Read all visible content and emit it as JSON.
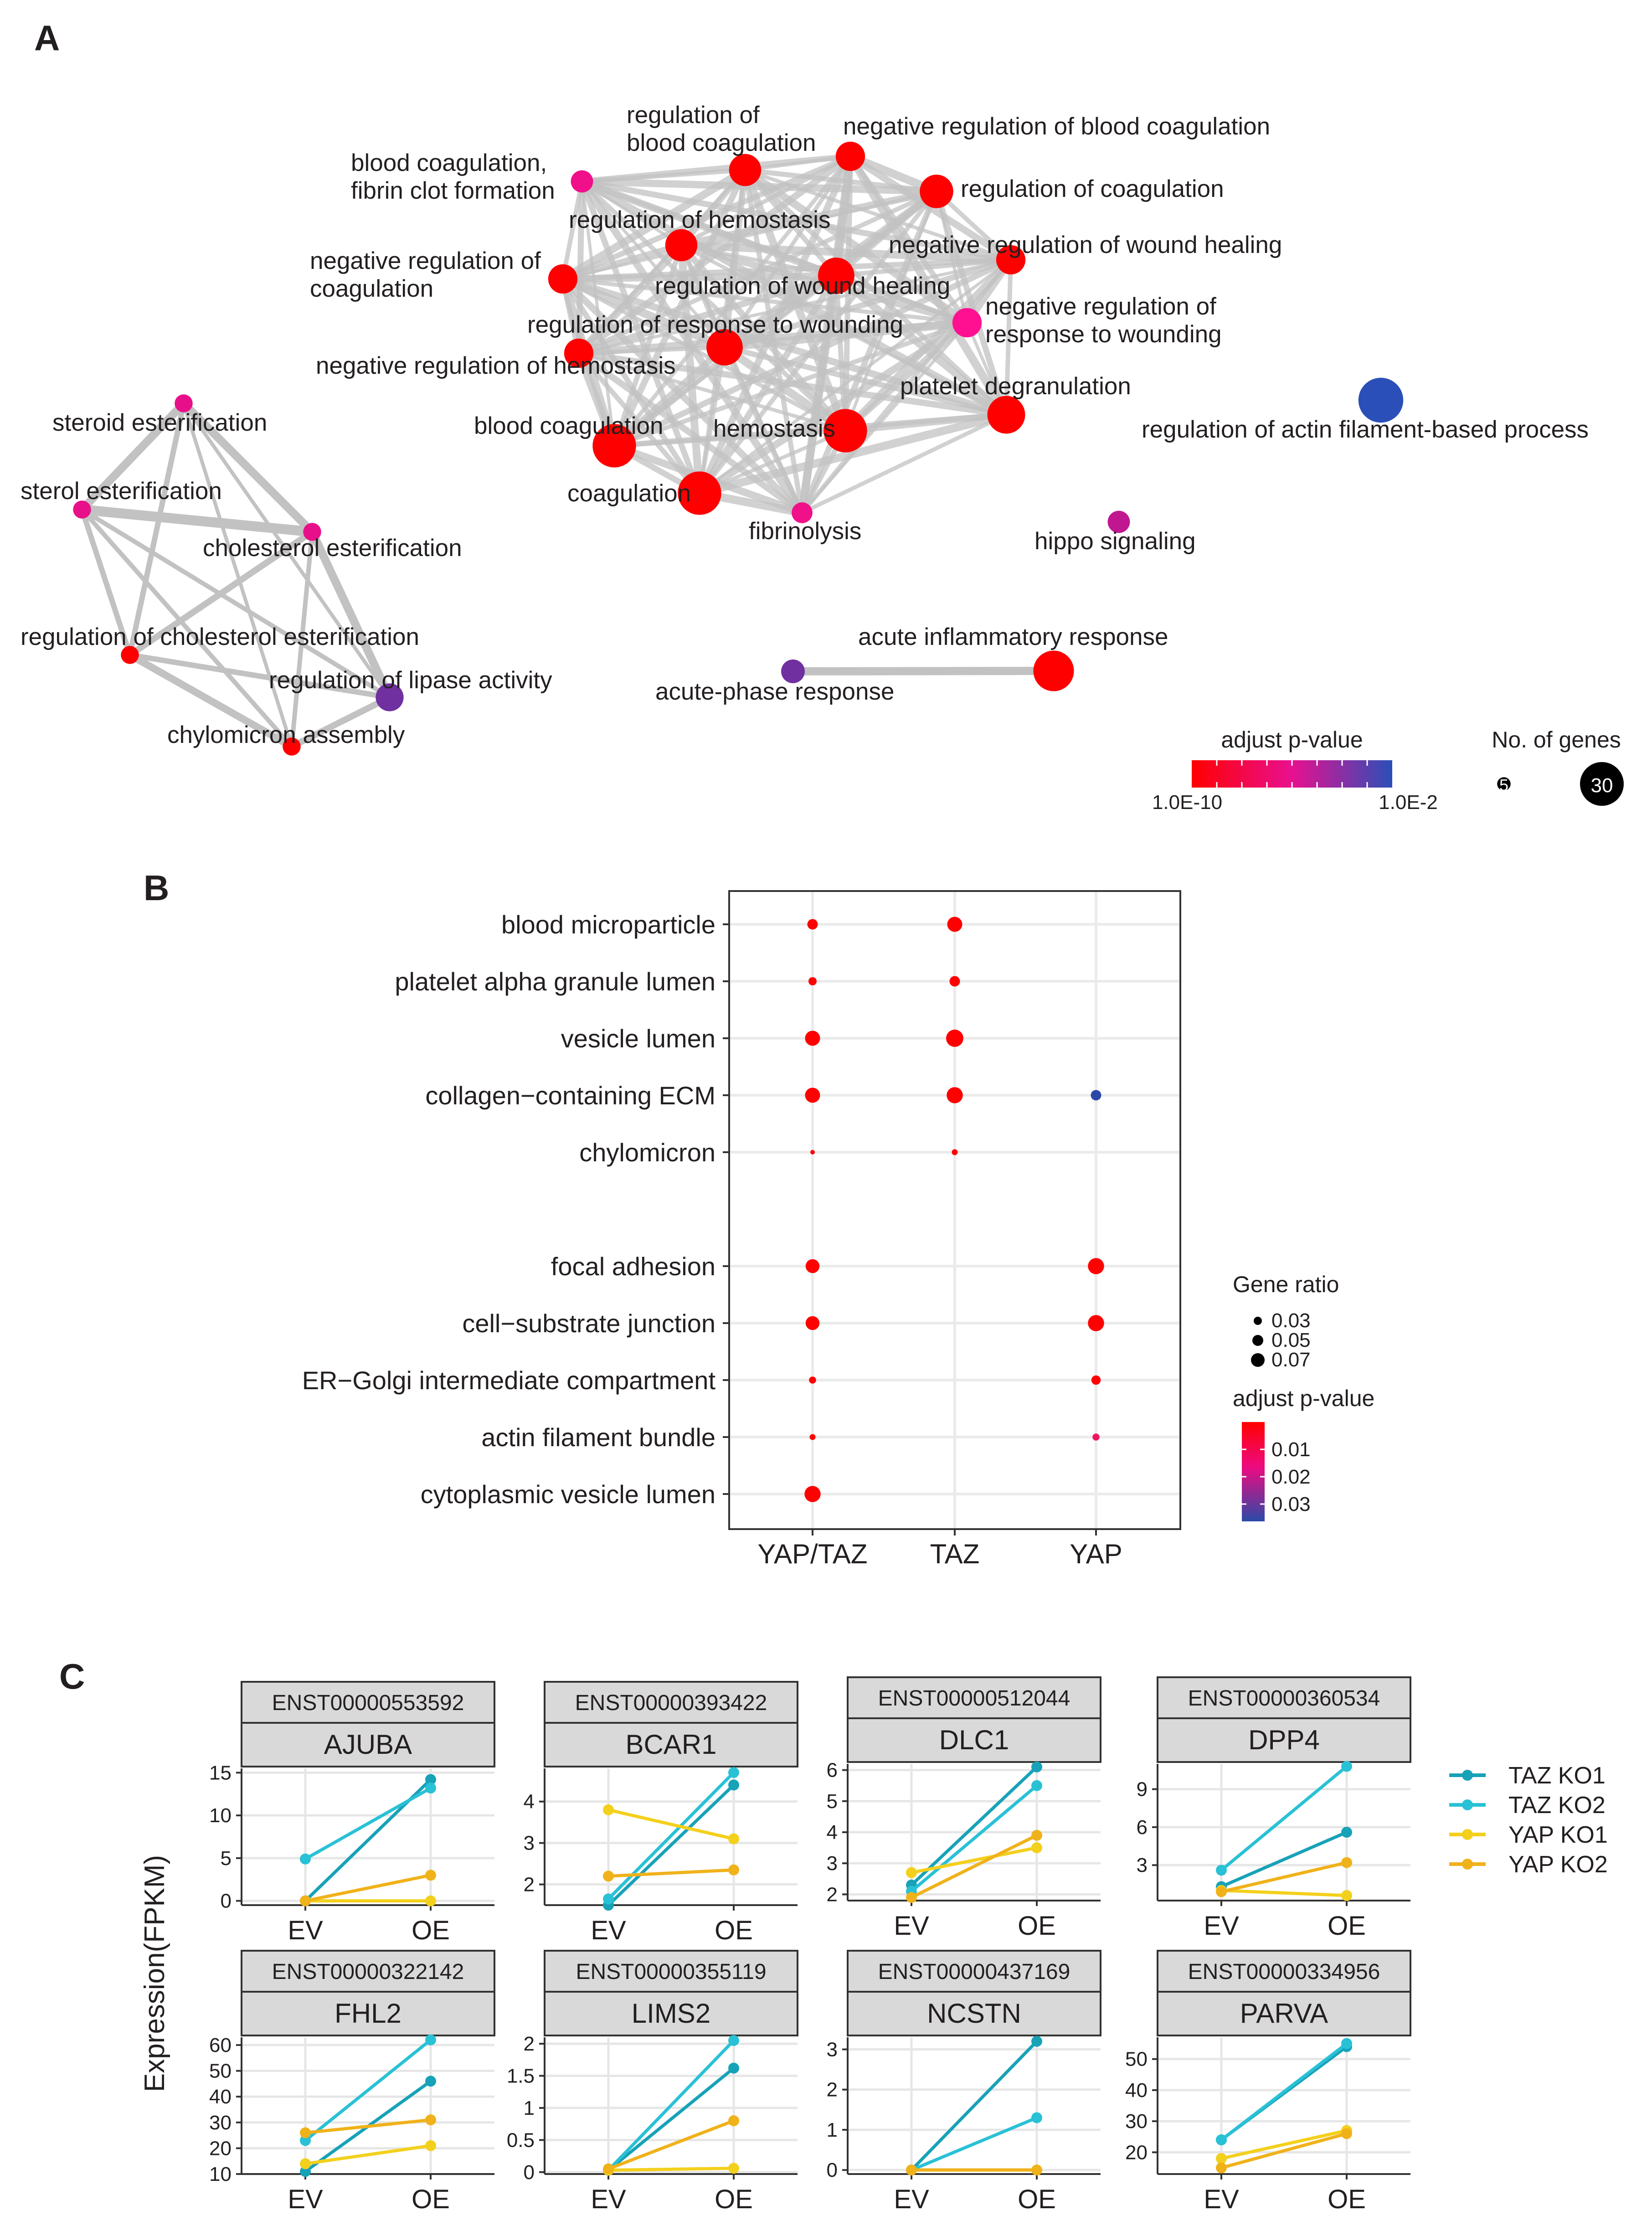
{
  "panels": {
    "a": "A",
    "b": "B",
    "c": "C"
  },
  "chart_data": [
    {
      "type": "network",
      "panel": "A",
      "legend": {
        "color_title": "adjust p-value",
        "color_min_label": "1.0E-10",
        "color_max_label": "1.0E-2",
        "color_low": "#ff0000",
        "color_mid": "#e8108f",
        "color_high": "#2a4fb8",
        "size_title": "No. of genes",
        "size_small_label": "5",
        "size_large_label": "30"
      },
      "nodes": [
        {
          "id": "bcff",
          "label": "blood coagulation,\nfibrin clot formation",
          "genes": 8,
          "color": "#f0108a"
        },
        {
          "id": "rbc",
          "label": "regulation of\nblood coagulation",
          "genes": 15,
          "color": "#ff0000"
        },
        {
          "id": "nrbc",
          "label": "negative regulation of blood coagulation",
          "genes": 13,
          "color": "#ff0000"
        },
        {
          "id": "rcoag",
          "label": "regulation of coagulation",
          "genes": 16,
          "color": "#ff0000"
        },
        {
          "id": "rhemo",
          "label": "regulation of hemostasis",
          "genes": 15,
          "color": "#ff0000"
        },
        {
          "id": "nrcoag",
          "label": "negative regulation of\ncoagulation",
          "genes": 13,
          "color": "#ff0000"
        },
        {
          "id": "nrwh",
          "label": "negative regulation of wound healing",
          "genes": 13,
          "color": "#ff0000"
        },
        {
          "id": "rwh",
          "label": "regulation of wound healing",
          "genes": 18,
          "color": "#ff0000"
        },
        {
          "id": "rrw",
          "label": "regulation of response to wounding",
          "genes": 18,
          "color": "#ff0000"
        },
        {
          "id": "nrrw",
          "label": "negative regulation of\nresponse to wounding",
          "genes": 13,
          "color": "#ff1090"
        },
        {
          "id": "nrhemo",
          "label": "negative regulation of hemostasis",
          "genes": 13,
          "color": "#ff0000"
        },
        {
          "id": "pdeg",
          "label": "platelet degranulation",
          "genes": 19,
          "color": "#ff0000"
        },
        {
          "id": "bcoag",
          "label": "blood coagulation",
          "genes": 23,
          "color": "#ff0000"
        },
        {
          "id": "hemostasis",
          "label": "hemostasis",
          "genes": 23,
          "color": "#ff0000"
        },
        {
          "id": "coag",
          "label": "coagulation",
          "genes": 23,
          "color": "#ff0000"
        },
        {
          "id": "fibrin",
          "label": "fibrinolysis",
          "genes": 7,
          "color": "#f0108a"
        },
        {
          "id": "ractin",
          "label": "regulation of actin filament-based process",
          "genes": 24,
          "color": "#2a4fb8"
        },
        {
          "id": "hippo",
          "label": "hippo signaling",
          "genes": 8,
          "color": "#c0168f"
        },
        {
          "id": "air",
          "label": "acute inflammatory response",
          "genes": 21,
          "color": "#ff0000"
        },
        {
          "id": "apr",
          "label": "acute-phase response",
          "genes": 9,
          "color": "#7030a0"
        },
        {
          "id": "steroid",
          "label": "steroid esterification",
          "genes": 5,
          "color": "#e8108a"
        },
        {
          "id": "sterol",
          "label": "sterol esterification",
          "genes": 5,
          "color": "#e8108a"
        },
        {
          "id": "chol",
          "label": "cholesterol esterification",
          "genes": 5,
          "color": "#e8108a"
        },
        {
          "id": "rce",
          "label": "regulation of cholesterol esterification",
          "genes": 5,
          "color": "#ff0000"
        },
        {
          "id": "rla",
          "label": "regulation of lipase activity",
          "genes": 12,
          "color": "#7030a0"
        },
        {
          "id": "chylo",
          "label": "chylomicron assembly",
          "genes": 5,
          "color": "#ff0000"
        }
      ]
    },
    {
      "type": "dot",
      "panel": "B",
      "x_categories": [
        "YAP/TAZ",
        "TAZ",
        "YAP"
      ],
      "y_categories": [
        "blood microparticle",
        "platelet alpha granule lumen",
        "vesicle lumen",
        "collagen−containing ECM",
        "chylomicron",
        "focal adhesion",
        "cell−substrate junction",
        "ER−Golgi intermediate compartment",
        "actin filament bundle",
        "cytoplasmic vesicle lumen"
      ],
      "points": [
        {
          "x": "YAP/TAZ",
          "y": "blood microparticle",
          "gene_ratio": 0.05,
          "p_adjust": 0.0001
        },
        {
          "x": "TAZ",
          "y": "blood microparticle",
          "gene_ratio": 0.07,
          "p_adjust": 0.0001
        },
        {
          "x": "YAP/TAZ",
          "y": "platelet alpha granule lumen",
          "gene_ratio": 0.04,
          "p_adjust": 0.0001
        },
        {
          "x": "TAZ",
          "y": "platelet alpha granule lumen",
          "gene_ratio": 0.05,
          "p_adjust": 0.0001
        },
        {
          "x": "YAP/TAZ",
          "y": "vesicle lumen",
          "gene_ratio": 0.07,
          "p_adjust": 0.0001
        },
        {
          "x": "TAZ",
          "y": "vesicle lumen",
          "gene_ratio": 0.08,
          "p_adjust": 0.0001
        },
        {
          "x": "YAP/TAZ",
          "y": "collagen−containing ECM",
          "gene_ratio": 0.07,
          "p_adjust": 0.0001
        },
        {
          "x": "TAZ",
          "y": "collagen−containing ECM",
          "gene_ratio": 0.075,
          "p_adjust": 0.0001
        },
        {
          "x": "YAP",
          "y": "collagen−containing ECM",
          "gene_ratio": 0.05,
          "p_adjust": 0.035
        },
        {
          "x": "YAP/TAZ",
          "y": "chylomicron",
          "gene_ratio": 0.02,
          "p_adjust": 0.001
        },
        {
          "x": "TAZ",
          "y": "chylomicron",
          "gene_ratio": 0.03,
          "p_adjust": 0.001
        },
        {
          "x": "YAP/TAZ",
          "y": "focal adhesion",
          "gene_ratio": 0.065,
          "p_adjust": 0.0001
        },
        {
          "x": "YAP",
          "y": "focal adhesion",
          "gene_ratio": 0.075,
          "p_adjust": 0.0001
        },
        {
          "x": "YAP/TAZ",
          "y": "cell−substrate junction",
          "gene_ratio": 0.065,
          "p_adjust": 0.0001
        },
        {
          "x": "YAP",
          "y": "cell−substrate junction",
          "gene_ratio": 0.075,
          "p_adjust": 0.0001
        },
        {
          "x": "YAP/TAZ",
          "y": "ER−Golgi intermediate compartment",
          "gene_ratio": 0.035,
          "p_adjust": 0.001
        },
        {
          "x": "YAP",
          "y": "ER−Golgi intermediate compartment",
          "gene_ratio": 0.045,
          "p_adjust": 0.001
        },
        {
          "x": "YAP/TAZ",
          "y": "actin filament bundle",
          "gene_ratio": 0.03,
          "p_adjust": 0.002
        },
        {
          "x": "YAP",
          "y": "actin filament bundle",
          "gene_ratio": 0.035,
          "p_adjust": 0.008
        },
        {
          "x": "YAP/TAZ",
          "y": "cytoplasmic vesicle lumen",
          "gene_ratio": 0.075,
          "p_adjust": 0.0001
        }
      ],
      "legend": {
        "size_title": "Gene ratio",
        "size_labels": [
          "0.03",
          "0.05",
          "0.07"
        ],
        "color_title": "adjust p-value",
        "color_labels": [
          "0.01",
          "0.02",
          "0.03"
        ]
      }
    },
    {
      "type": "line",
      "panel": "C",
      "ylabel": "Expression(FPKM)",
      "x_categories": [
        "EV",
        "OE"
      ],
      "series_names": [
        "TAZ KO1",
        "TAZ KO2",
        "YAP KO1",
        "YAP KO2"
      ],
      "series_colors": [
        "#17a2b8",
        "#29c1d6",
        "#f3d01c",
        "#f0b21a"
      ],
      "facets": [
        {
          "transcript": "ENST00000553592",
          "gene": "AJUBA",
          "ylim": [
            -0.5,
            15.5
          ],
          "yticks": [
            0,
            5,
            10,
            15
          ],
          "series": [
            [
              0,
              14.2
            ],
            [
              4.9,
              13.2
            ],
            [
              0,
              0
            ],
            [
              0,
              3
            ]
          ]
        },
        {
          "transcript": "ENST00000393422",
          "gene": "BCAR1",
          "ylim": [
            1.5,
            4.8
          ],
          "yticks": [
            2,
            3,
            4
          ],
          "series": [
            [
              1.5,
              4.4
            ],
            [
              1.65,
              4.7
            ],
            [
              3.8,
              3.1
            ],
            [
              2.2,
              2.35
            ]
          ]
        },
        {
          "transcript": "ENST00000512044",
          "gene": "DLC1",
          "ylim": [
            1.8,
            6.2
          ],
          "yticks": [
            2,
            3,
            4,
            5,
            6
          ],
          "series": [
            [
              2.3,
              6.1
            ],
            [
              2.1,
              5.5
            ],
            [
              2.7,
              3.5
            ],
            [
              1.9,
              3.9
            ]
          ]
        },
        {
          "transcript": "ENST00000360534",
          "gene": "DPP4",
          "ylim": [
            0.2,
            11
          ],
          "yticks": [
            3,
            6,
            9
          ],
          "series": [
            [
              1.3,
              5.6
            ],
            [
              2.6,
              10.8
            ],
            [
              1.0,
              0.6
            ],
            [
              0.9,
              3.2
            ]
          ]
        },
        {
          "transcript": "ENST00000322142",
          "gene": "FHL2",
          "ylim": [
            10,
            63
          ],
          "yticks": [
            10,
            20,
            30,
            40,
            50,
            60
          ],
          "series": [
            [
              11,
              46
            ],
            [
              23,
              62
            ],
            [
              14,
              21
            ],
            [
              26,
              31
            ]
          ]
        },
        {
          "transcript": "ENST00000355119",
          "gene": "LIMS2",
          "ylim": [
            -0.03,
            2.1
          ],
          "yticks": [
            0.0,
            0.5,
            1.0,
            1.5,
            2.0
          ],
          "series": [
            [
              0.03,
              1.62
            ],
            [
              0.03,
              2.05
            ],
            [
              0.03,
              0.06
            ],
            [
              0.05,
              0.8
            ]
          ]
        },
        {
          "transcript": "ENST00000437169",
          "gene": "NCSTN",
          "ylim": [
            -0.1,
            3.3
          ],
          "yticks": [
            0,
            1,
            2,
            3
          ],
          "series": [
            [
              0,
              3.2
            ],
            [
              0,
              1.3
            ],
            [
              0,
              0
            ],
            [
              0,
              0
            ]
          ]
        },
        {
          "transcript": "ENST00000334956",
          "gene": "PARVA",
          "ylim": [
            13,
            57
          ],
          "yticks": [
            20,
            30,
            40,
            50
          ],
          "series": [
            [
              24,
              54
            ],
            [
              24,
              55
            ],
            [
              18,
              27
            ],
            [
              15,
              26
            ]
          ]
        }
      ]
    }
  ]
}
